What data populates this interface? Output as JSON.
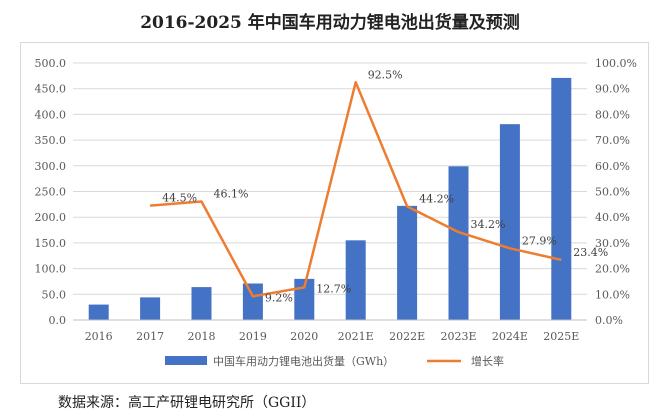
{
  "title": "2016-2025 年中国车用动力锂电池出货量及预测",
  "source": "数据来源：高工产研锂电研究所（GGII）",
  "colors": {
    "bar": "#4472c4",
    "line": "#ed7d31",
    "grid": "#d9d9d9",
    "axis_text": "#595959"
  },
  "chart_data": {
    "type": "bar",
    "categories": [
      "2016",
      "2017",
      "2018",
      "2019",
      "2020",
      "2021E",
      "2022E",
      "2023E",
      "2024E",
      "2025E"
    ],
    "y_left_ticks": [
      "0.0",
      "50.0",
      "100.0",
      "150.0",
      "200.0",
      "250.0",
      "300.0",
      "350.0",
      "400.0",
      "450.0",
      "500.0"
    ],
    "y_right_ticks": [
      "0.0%",
      "10.0%",
      "20.0%",
      "30.0%",
      "40.0%",
      "50.0%",
      "60.0%",
      "70.0%",
      "80.0%",
      "90.0%",
      "100.0%"
    ],
    "ylim_left": [
      0,
      500
    ],
    "ylim_right": [
      0,
      100
    ],
    "grid": true,
    "legend_position": "bottom",
    "series": [
      {
        "name": "中国车用动力锂电池出货量（GWh）",
        "type": "bar",
        "axis": "left",
        "values": [
          30,
          44,
          64,
          71,
          80,
          155,
          222,
          299,
          381,
          471
        ]
      },
      {
        "name": "增长率",
        "type": "line",
        "axis": "right",
        "values": [
          null,
          44.5,
          46.1,
          9.2,
          12.7,
          92.5,
          44.2,
          34.2,
          27.9,
          23.4
        ],
        "labels": [
          "",
          "44.5%",
          "46.1%",
          "9.2%",
          "12.7%",
          "92.5%",
          "44.2%",
          "34.2%",
          "27.9%",
          "23.4%"
        ]
      }
    ]
  }
}
